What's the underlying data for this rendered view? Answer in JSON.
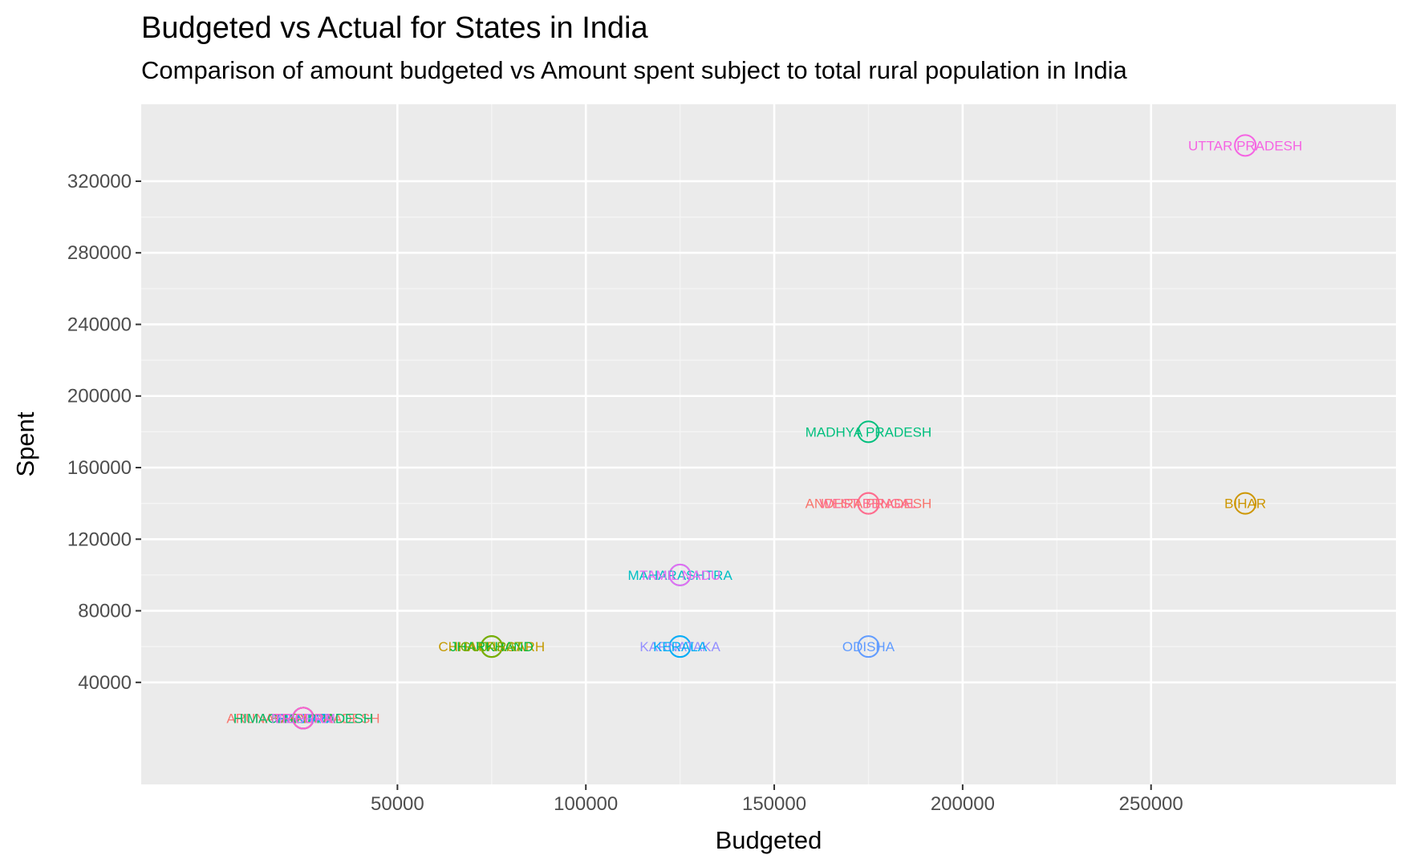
{
  "chart_data": {
    "type": "scatter",
    "title": "Budgeted vs Actual for States in India",
    "subtitle": "Comparison of amount budgeted vs Amount spent subject to total rural population in India",
    "xlabel": "Budgeted",
    "ylabel": "Spent",
    "xlim": [
      -18000,
      315000
    ],
    "ylim": [
      -17000,
      363000
    ],
    "x_ticks": [
      50000,
      100000,
      150000,
      200000,
      250000
    ],
    "y_ticks": [
      40000,
      80000,
      120000,
      160000,
      200000,
      240000,
      280000,
      320000
    ],
    "x_tick_labels": [
      "50000",
      "100000",
      "150000",
      "200000",
      "250000"
    ],
    "y_tick_labels": [
      "40000",
      "80000",
      "120000",
      "160000",
      "200000",
      "240000",
      "280000",
      "320000"
    ],
    "grid": true,
    "legend": "none",
    "points": [
      {
        "label": "UTTAR PRADESH",
        "x": 275000,
        "y": 340000,
        "color": "#F564E3"
      },
      {
        "label": "MADHYA PRADESH",
        "x": 175000,
        "y": 180000,
        "color": "#00BF7D"
      },
      {
        "label": "ANDHRA PRADESH",
        "x": 175000,
        "y": 140000,
        "color": "#F8766D"
      },
      {
        "label": "WEST BENGAL",
        "x": 175000,
        "y": 140000,
        "color": "#FF6C91"
      },
      {
        "label": "BIHAR",
        "x": 275000,
        "y": 140000,
        "color": "#CD9600"
      },
      {
        "label": "MAHARASHTRA",
        "x": 125000,
        "y": 100000,
        "color": "#00BFC4"
      },
      {
        "label": "TAMIL NADU",
        "x": 125000,
        "y": 100000,
        "color": "#E76BF3"
      },
      {
        "label": "CHHATTISGARH",
        "x": 75000,
        "y": 60000,
        "color": "#C49A00"
      },
      {
        "label": "JHARKHAND",
        "x": 75000,
        "y": 60000,
        "color": "#00BA38"
      },
      {
        "label": "GUJARAT",
        "x": 75000,
        "y": 60000,
        "color": "#7CAE00"
      },
      {
        "label": "KARNATAKA",
        "x": 125000,
        "y": 60000,
        "color": "#9590FF"
      },
      {
        "label": "KERALA",
        "x": 125000,
        "y": 60000,
        "color": "#00B0F6"
      },
      {
        "label": "ODISHA",
        "x": 175000,
        "y": 60000,
        "color": "#619CFF"
      },
      {
        "label": "ARUNACHAL PRADESH",
        "x": 25000,
        "y": 20000,
        "color": "#F8766D"
      },
      {
        "label": "HARYANA",
        "x": 25000,
        "y": 20000,
        "color": "#7CAE00"
      },
      {
        "label": "HIMACHAL PRADESH",
        "x": 25000,
        "y": 20000,
        "color": "#00BE67"
      },
      {
        "label": "PUNJAB",
        "x": 25000,
        "y": 20000,
        "color": "#00A9FF"
      },
      {
        "label": "MIZORAM",
        "x": 25000,
        "y": 20000,
        "color": "#C77CFF"
      },
      {
        "label": "TRIPURA",
        "x": 25000,
        "y": 20000,
        "color": "#FF61CC"
      }
    ]
  }
}
